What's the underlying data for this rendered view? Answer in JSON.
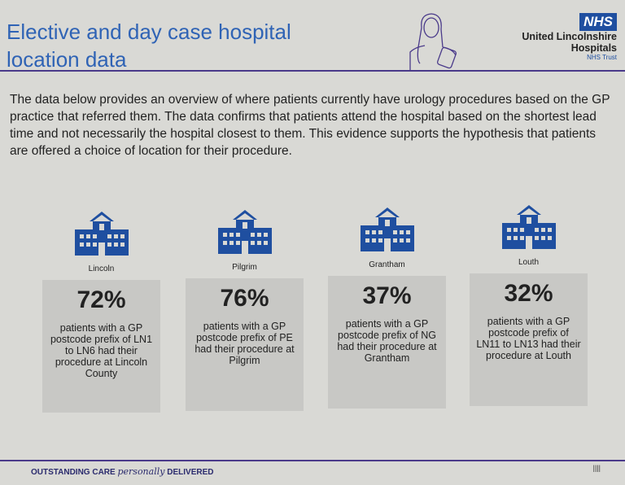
{
  "header": {
    "title_line1": "Elective and day case hospital",
    "title_line2": "location data",
    "logo": {
      "badge": "NHS",
      "org_line1": "United Lincolnshire",
      "org_line2": "Hospitals",
      "trust": "NHS Trust"
    }
  },
  "intro": "The data below provides an overview of where patients currently have urology procedures based on the GP practice that referred them.  The data confirms that patients attend the hospital based on the shortest lead time and not necessarily the hospital closest to them.  This evidence supports the hypothesis that patients are offered a choice of location for their procedure.",
  "hospitals": [
    {
      "name": "Lincoln",
      "percent": "72%",
      "text": "patients with a GP postcode prefix of LN1 to LN6 had their procedure at Lincoln County"
    },
    {
      "name": "Pilgrim",
      "percent": "76%",
      "text": "patients with a GP postcode prefix of PE had their procedure at Pilgrim"
    },
    {
      "name": "Grantham",
      "percent": "37%",
      "text": "patients with a GP postcode prefix of NG had their procedure at Grantham"
    },
    {
      "name": "Louth",
      "percent": "32%",
      "text": "patients with a GP postcode prefix of LN11 to LN13 had their procedure at Louth"
    }
  ],
  "footer": {
    "part1": "OUTSTANDING CARE",
    "part2": "personally",
    "part3": "DELIVERED",
    "page_marker": "||||"
  },
  "colors": {
    "title": "#2f63b5",
    "nhs_blue": "#1f4fa0",
    "accent_line": "#4a3a8a",
    "card": "#c8c8c5"
  }
}
